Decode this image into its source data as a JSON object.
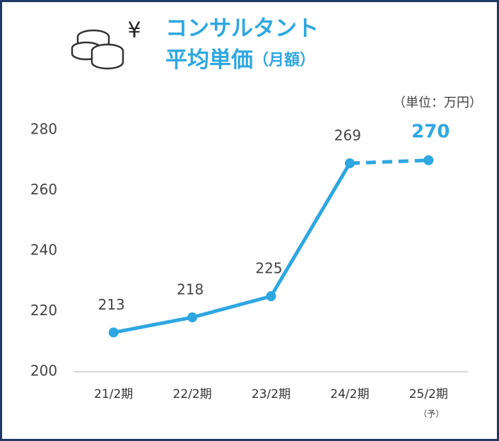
{
  "chart_data": {
    "type": "line",
    "icon_symbol": "¥",
    "title_lines": [
      "コンサルタント",
      "平均単価"
    ],
    "title_suffix": "（月額）",
    "unit_note": "（単位：万円）",
    "categories": [
      "21/2期",
      "22/2期",
      "23/2期",
      "24/2期",
      "25/2期"
    ],
    "values": [
      213,
      218,
      225,
      269,
      270
    ],
    "forecast_index": 4,
    "forecast_note": "（予）",
    "color": "#2ea7e0",
    "ylim": [
      200,
      280
    ],
    "yticks": [
      200,
      220,
      240,
      260,
      280
    ]
  }
}
